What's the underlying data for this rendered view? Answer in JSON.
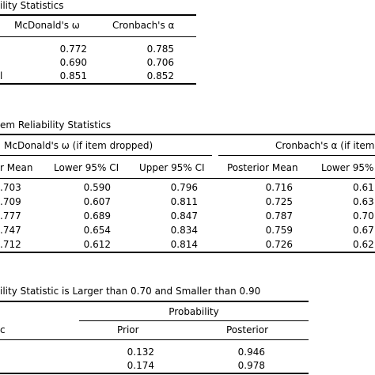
{
  "table1": {
    "title": "ility Statistics",
    "headers": [
      "McDonald's ω",
      "Cronbach's α"
    ],
    "rows": [
      {
        "label": "",
        "omega": "0.772",
        "alpha": "0.785"
      },
      {
        "label": "",
        "omega": "0.690",
        "alpha": "0.706"
      },
      {
        "label": "l",
        "omega": "0.851",
        "alpha": "0.852"
      }
    ]
  },
  "table2": {
    "title": "em Reliability Statistics",
    "group_headers": [
      "McDonald's ω (if item dropped)",
      "Cronbach's α (if item"
    ],
    "col_headers": [
      "r Mean",
      "Lower 95% CI",
      "Upper 95% CI",
      "Posterior Mean",
      "Lower 95%"
    ],
    "rows": [
      {
        "c1": ".703",
        "c2": "0.590",
        "c3": "0.796",
        "c4": "0.716",
        "c5": "0.61"
      },
      {
        "c1": ".709",
        "c2": "0.607",
        "c3": "0.811",
        "c4": "0.725",
        "c5": "0.63"
      },
      {
        "c1": ".777",
        "c2": "0.689",
        "c3": "0.847",
        "c4": "0.787",
        "c5": "0.70"
      },
      {
        "c1": ".747",
        "c2": "0.654",
        "c3": "0.834",
        "c4": "0.759",
        "c5": "0.67"
      },
      {
        "c1": ".712",
        "c2": "0.612",
        "c3": "0.814",
        "c4": "0.726",
        "c5": "0.62"
      }
    ]
  },
  "table3": {
    "title": "ility Statistic is Larger than 0.70 and Smaller than 0.90",
    "group_header": "Probability",
    "row_header": "c",
    "col_headers": [
      "Prior",
      "Posterior"
    ],
    "rows": [
      {
        "prior": "0.132",
        "posterior": "0.946"
      },
      {
        "prior": "0.174",
        "posterior": "0.978"
      }
    ]
  }
}
